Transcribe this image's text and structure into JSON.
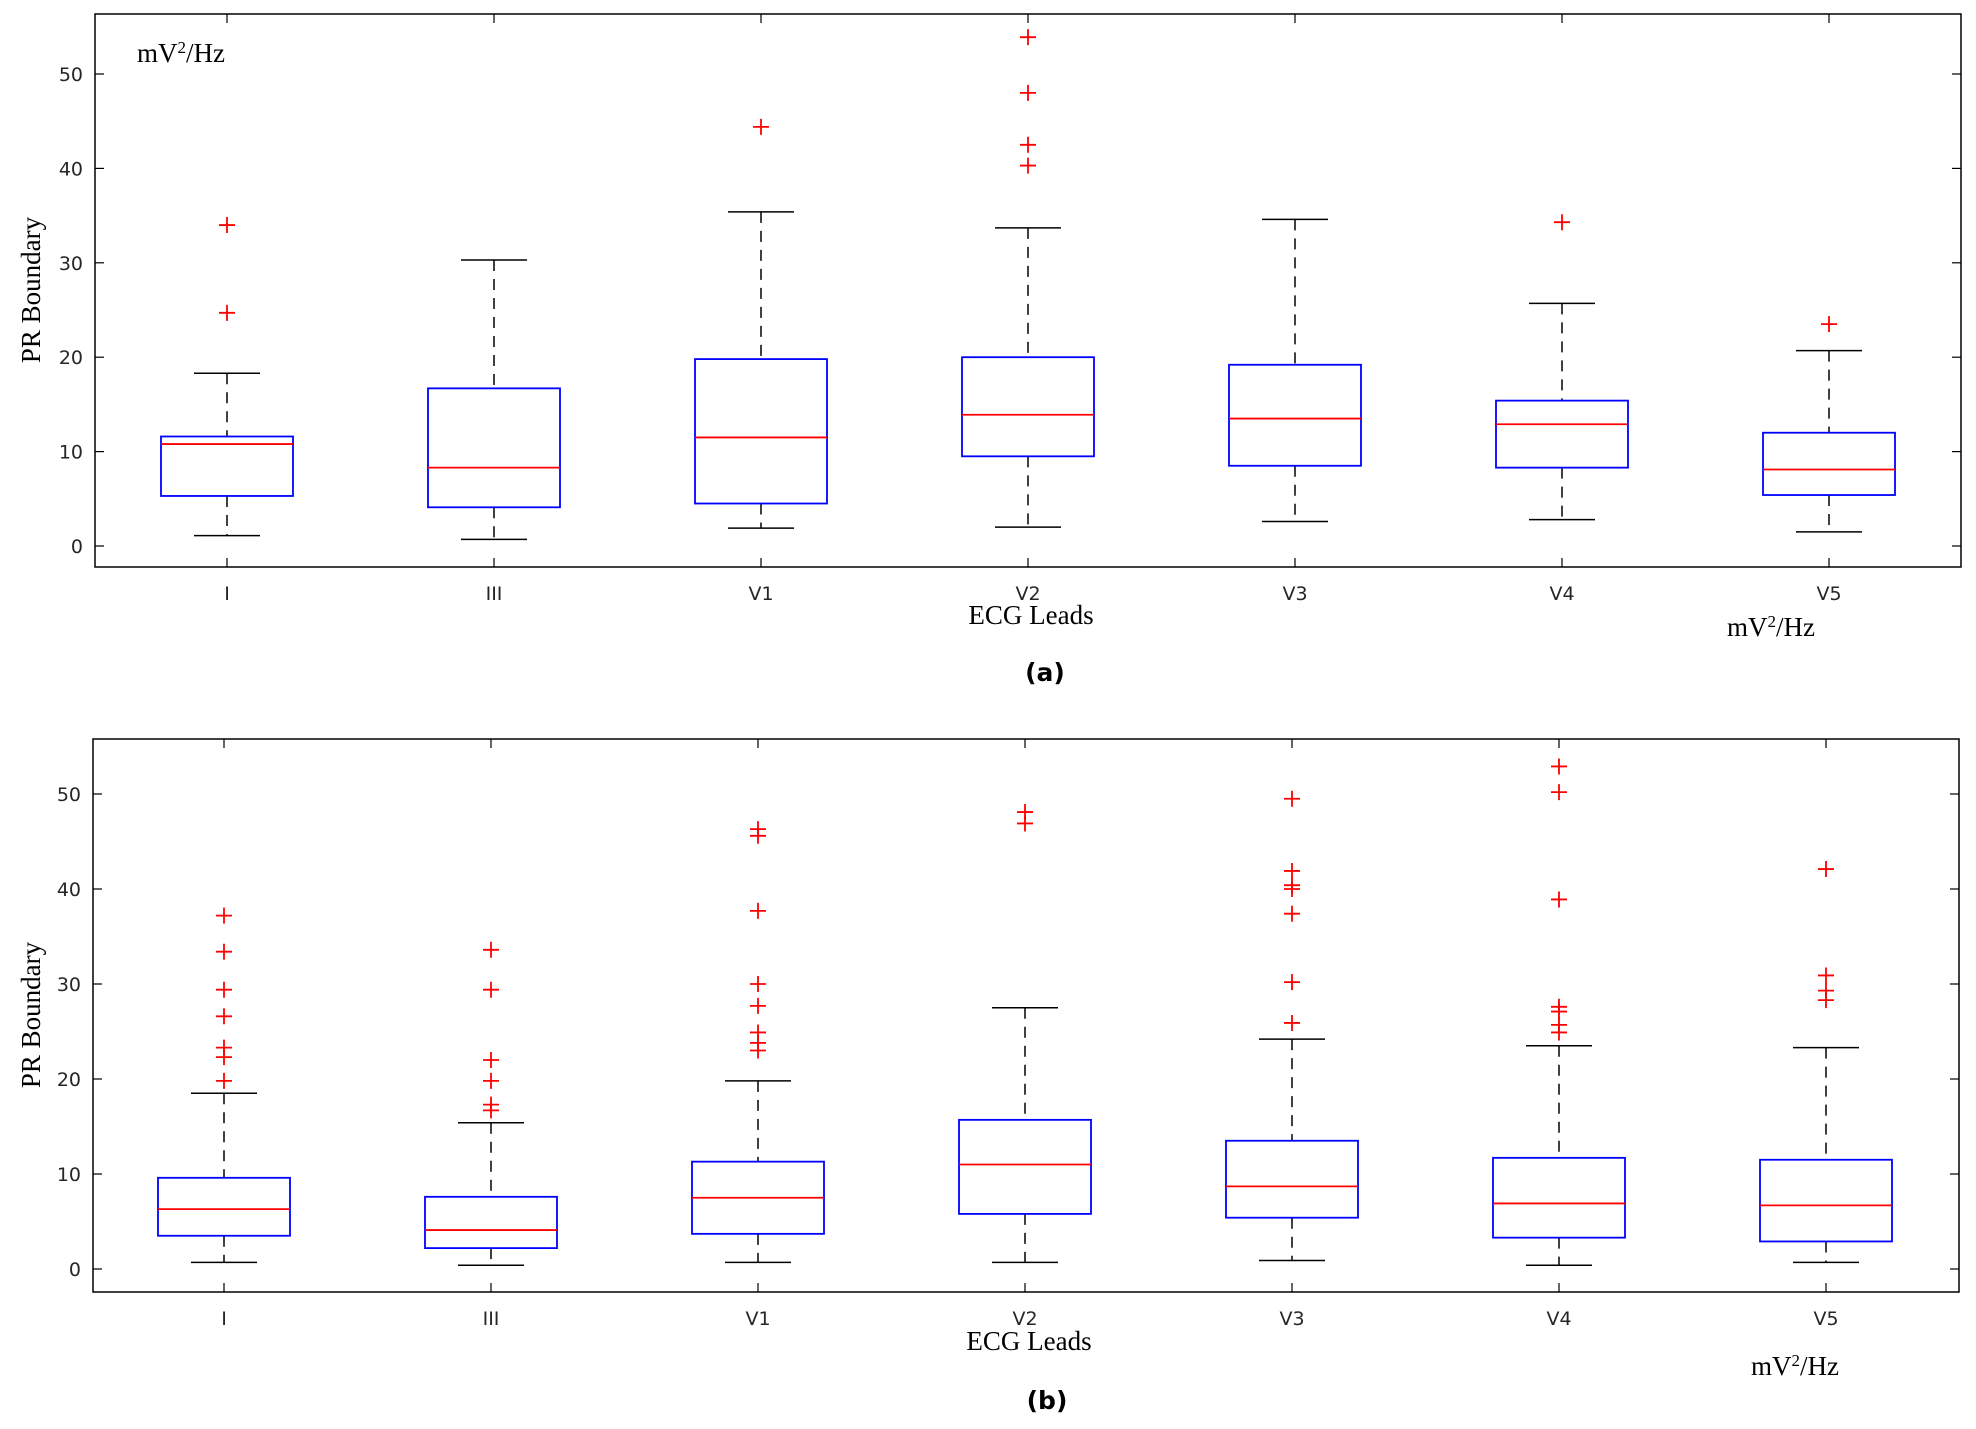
{
  "colors": {
    "box": "#0000ff",
    "median": "#ff0000",
    "outlier": "#ff0000",
    "whisker": "#000000",
    "axes": "#000000"
  },
  "chart_data": [
    {
      "type": "boxplot",
      "caption": "(a)",
      "xlabel": "ECG Leads",
      "ylabel": "PR Boundary",
      "unit_inside": {
        "base": "mV",
        "sup": "2",
        "tail": "/Hz"
      },
      "unit_below": {
        "base": "mV",
        "sup": "2",
        "tail": "/Hz"
      },
      "ylim": [
        -2,
        56
      ],
      "yticks": [
        0,
        10,
        20,
        30,
        40,
        50
      ],
      "categories": [
        "I",
        "III",
        "V1",
        "V2",
        "V3",
        "V4",
        "V5"
      ],
      "boxes": [
        {
          "lead": "I",
          "whisker_low": 1.1,
          "q1": 5.3,
          "median": 10.8,
          "q3": 11.6,
          "whisker_high": 18.3,
          "outliers": [
            24.7,
            34.0
          ]
        },
        {
          "lead": "III",
          "whisker_low": 0.7,
          "q1": 4.1,
          "median": 8.3,
          "q3": 16.7,
          "whisker_high": 30.3,
          "outliers": []
        },
        {
          "lead": "V1",
          "whisker_low": 1.9,
          "q1": 4.5,
          "median": 11.5,
          "q3": 19.8,
          "whisker_high": 35.4,
          "outliers": [
            44.4
          ]
        },
        {
          "lead": "V2",
          "whisker_low": 2.0,
          "q1": 9.5,
          "median": 13.9,
          "q3": 20.0,
          "whisker_high": 33.7,
          "outliers": [
            40.3,
            42.5,
            48.0,
            53.9
          ]
        },
        {
          "lead": "V3",
          "whisker_low": 2.6,
          "q1": 8.5,
          "median": 13.5,
          "q3": 19.2,
          "whisker_high": 34.6,
          "outliers": []
        },
        {
          "lead": "V4",
          "whisker_low": 2.8,
          "q1": 8.3,
          "median": 12.9,
          "q3": 15.4,
          "whisker_high": 25.7,
          "outliers": [
            34.3
          ]
        },
        {
          "lead": "V5",
          "whisker_low": 1.5,
          "q1": 5.4,
          "median": 8.1,
          "q3": 12.0,
          "whisker_high": 20.7,
          "outliers": [
            23.5
          ]
        }
      ]
    },
    {
      "type": "boxplot",
      "caption": "(b)",
      "xlabel": "ECG Leads",
      "ylabel": "PR Boundary",
      "unit_below": {
        "base": "mV",
        "sup": "2",
        "tail": "/Hz"
      },
      "ylim": [
        -2,
        56
      ],
      "yticks": [
        0,
        10,
        20,
        30,
        40,
        50
      ],
      "categories": [
        "I",
        "III",
        "V1",
        "V2",
        "V3",
        "V4",
        "V5"
      ],
      "boxes": [
        {
          "lead": "I",
          "whisker_low": 0.7,
          "q1": 3.5,
          "median": 6.3,
          "q3": 9.6,
          "whisker_high": 18.5,
          "outliers": [
            19.8,
            22.3,
            23.3,
            26.6,
            29.4,
            33.4,
            37.2
          ]
        },
        {
          "lead": "III",
          "whisker_low": 0.4,
          "q1": 2.2,
          "median": 4.1,
          "q3": 7.6,
          "whisker_high": 15.4,
          "outliers": [
            16.7,
            17.3,
            19.8,
            22.0,
            29.4,
            33.6
          ]
        },
        {
          "lead": "V1",
          "whisker_low": 0.7,
          "q1": 3.7,
          "median": 7.5,
          "q3": 11.3,
          "whisker_high": 19.8,
          "outliers": [
            23.0,
            23.8,
            24.9,
            27.7,
            30.0,
            37.7,
            45.6,
            46.3
          ]
        },
        {
          "lead": "V2",
          "whisker_low": 0.7,
          "q1": 5.8,
          "median": 11.0,
          "q3": 15.7,
          "whisker_high": 27.5,
          "outliers": [
            46.9,
            48.1
          ]
        },
        {
          "lead": "V3",
          "whisker_low": 0.9,
          "q1": 5.4,
          "median": 8.7,
          "q3": 13.5,
          "whisker_high": 24.2,
          "outliers": [
            25.9,
            30.2,
            37.4,
            40.0,
            40.4,
            41.9,
            49.5
          ]
        },
        {
          "lead": "V4",
          "whisker_low": 0.4,
          "q1": 3.3,
          "median": 6.9,
          "q3": 11.7,
          "whisker_high": 23.5,
          "outliers": [
            24.9,
            25.7,
            27.1,
            27.6,
            38.9,
            50.2,
            52.9
          ]
        },
        {
          "lead": "V5",
          "whisker_low": 0.7,
          "q1": 2.9,
          "median": 6.7,
          "q3": 11.5,
          "whisker_high": 23.3,
          "outliers": [
            28.3,
            29.3,
            30.9,
            42.1
          ]
        }
      ]
    }
  ]
}
